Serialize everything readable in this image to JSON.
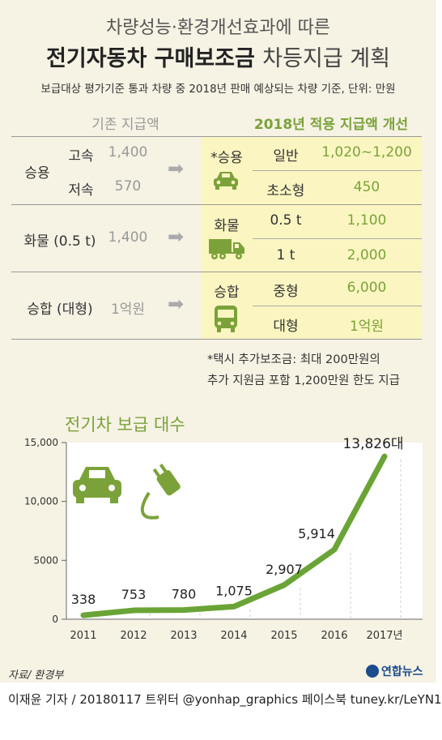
{
  "header": {
    "title_line1": "차량성능·환경개선효과에 따른",
    "title_line2_bold": "전기자동차 구매보조금",
    "title_line2_light": "차등지급 계획",
    "subnote": "보급대상 평가기준 통과 차량 중 2018년 판매 예상되는 차량 기준, 단위: 만원"
  },
  "table": {
    "left_header": "기존 지급액",
    "right_header": "2018년 적용 지급액 개선",
    "groups": [
      {
        "left_label": "승용",
        "left_rows": [
          {
            "sub": "고속",
            "value": "1,400"
          },
          {
            "sub": "저속",
            "value": "570"
          }
        ],
        "right_label": "*승용",
        "right_icon": "car-icon",
        "right_rows": [
          {
            "sub": "일반",
            "value": "1,020∼1,200"
          },
          {
            "sub": "초소형",
            "value": "450"
          }
        ]
      },
      {
        "left_label": "화물 (0.5 t)",
        "left_value": "1,400",
        "right_label": "화물",
        "right_icon": "truck-icon",
        "right_rows": [
          {
            "sub": "0.5 t",
            "value": "1,100"
          },
          {
            "sub": "1 t",
            "value": "2,000"
          }
        ]
      },
      {
        "left_label": "승합 (대형)",
        "left_value": "1억원",
        "right_label": "승합",
        "right_icon": "bus-icon",
        "right_rows": [
          {
            "sub": "중형",
            "value": "6,000"
          },
          {
            "sub": "대형",
            "value": "1억원"
          }
        ]
      }
    ],
    "footnote_line1": "*택시 추가보조금: 최대 200만원의",
    "footnote_line2": "추가 지원금 포함 1,200만원 한도 지급"
  },
  "chart_data": {
    "type": "line",
    "title": "전기차 보급 대수",
    "x": [
      "2011",
      "2012",
      "2013",
      "2014",
      "2015",
      "2016",
      "2017년"
    ],
    "values": [
      338,
      753,
      780,
      1075,
      2907,
      5914,
      13826
    ],
    "data_labels": [
      "338",
      "753",
      "780",
      "1,075",
      "2,907",
      "5,914",
      "13,826대"
    ],
    "yticks": [
      0,
      5000,
      10000,
      15000
    ],
    "ytick_labels": [
      "0",
      "5000",
      "10,000",
      "15,000"
    ],
    "ylim": [
      0,
      15000
    ],
    "grid": false,
    "line_color": "#6aa436",
    "icons": [
      "ev-car-icon",
      "plug-icon"
    ]
  },
  "footer": {
    "source": "자료/ 환경부",
    "credit": "이재윤 기자 / 20180117   트위터 @yonhap_graphics   페이스북 tuney.kr/LeYN1",
    "logo": "연합뉴스"
  },
  "colors": {
    "background": "#f6f2e4",
    "accent_green": "#7ba23a",
    "panel_yellow": "#fbf6c1",
    "muted_gray": "#999999"
  }
}
